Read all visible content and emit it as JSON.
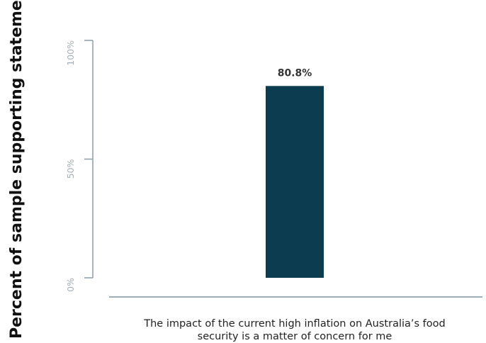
{
  "chart_data": {
    "type": "bar",
    "title": "",
    "ylabel": "Percent of sample supporting statement",
    "xlabel": "",
    "ylim": [
      0,
      100
    ],
    "yticks": [
      0,
      50,
      100
    ],
    "ytick_labels": [
      "0%",
      "50%",
      "100%"
    ],
    "categories": [
      "The impact of the current high inflation on Australia’s food security is a matter of concern for me"
    ],
    "category_lines": [
      [
        "The impact of the current high inflation on Australia’s food",
        "security is a matter of concern for me"
      ]
    ],
    "values": [
      80.8
    ],
    "data_labels": [
      "80.8%"
    ],
    "grid": false,
    "legend": "none",
    "colors": {
      "bar": "#0b3c4f",
      "axis": "#8fa3ad",
      "tick_text": "#9fb0b8"
    }
  }
}
